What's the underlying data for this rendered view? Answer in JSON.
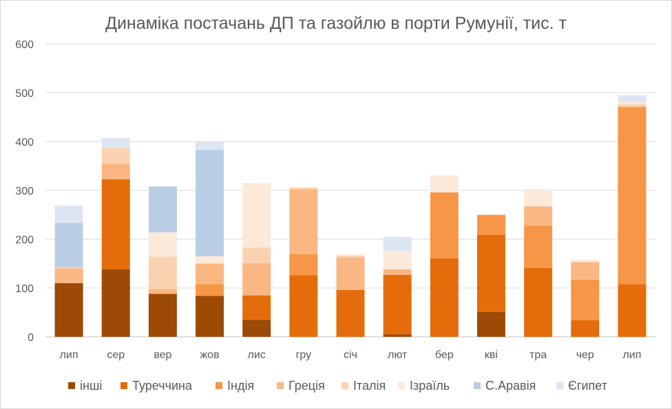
{
  "chart_data": {
    "type": "bar",
    "stacked": true,
    "title": "Динаміка постачань ДП та газойлю в порти Румунії, тис. т",
    "xlabel": "",
    "ylabel": "",
    "ylim": [
      0,
      600
    ],
    "yticks": [
      0,
      100,
      200,
      300,
      400,
      500,
      600
    ],
    "grid": true,
    "legend_position": "bottom",
    "categories": [
      "лип",
      "сер",
      "вер",
      "жов",
      "лис",
      "гру",
      "січ",
      "лют",
      "бер",
      "кві",
      "тра",
      "чер",
      "лип"
    ],
    "series": [
      {
        "name": "інші",
        "color": "#9c4a06",
        "values": [
          110,
          138,
          88,
          84,
          35,
          0,
          0,
          5,
          0,
          51,
          0,
          0,
          0
        ]
      },
      {
        "name": "Туреччина",
        "color": "#e46c0a",
        "values": [
          0,
          185,
          0,
          0,
          50,
          126,
          96,
          122,
          161,
          158,
          141,
          34,
          108
        ]
      },
      {
        "name": "Індія",
        "color": "#f79646",
        "values": [
          0,
          0,
          0,
          24,
          0,
          43,
          0,
          0,
          135,
          41,
          87,
          83,
          363
        ]
      },
      {
        "name": "Греція",
        "color": "#fab783",
        "values": [
          30,
          32,
          10,
          42,
          66,
          133,
          67,
          11,
          0,
          0,
          39,
          36,
          0
        ]
      },
      {
        "name": "Італія",
        "color": "#fbd2b0",
        "values": [
          3,
          32,
          66,
          0,
          32,
          4,
          3,
          0,
          0,
          0,
          0,
          0,
          5
        ]
      },
      {
        "name": "Ізраїль",
        "color": "#fde9d9",
        "values": [
          0,
          0,
          50,
          15,
          132,
          0,
          3,
          38,
          35,
          0,
          36,
          5,
          5
        ]
      },
      {
        "name": "С.Аравія",
        "color": "#b9cde5",
        "values": [
          90,
          0,
          94,
          218,
          0,
          0,
          0,
          0,
          0,
          0,
          0,
          0,
          0
        ]
      },
      {
        "name": "Єгипет",
        "color": "#dce6f2",
        "values": [
          36,
          20,
          0,
          17,
          0,
          0,
          0,
          29,
          0,
          0,
          0,
          0,
          14
        ]
      }
    ]
  }
}
